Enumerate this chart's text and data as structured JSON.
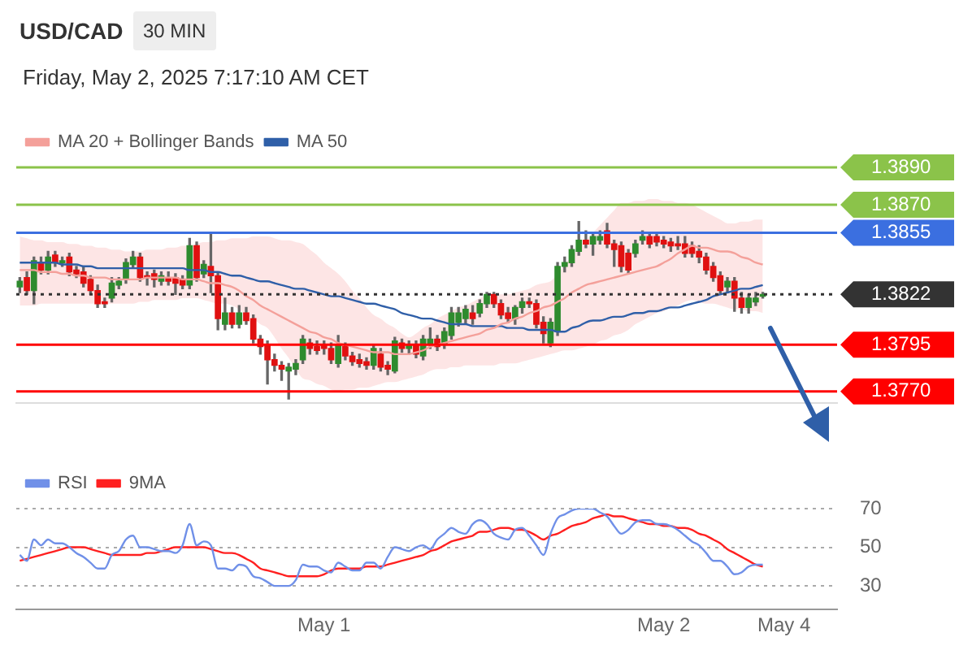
{
  "chart_data": [
    {
      "type": "candlestick",
      "title": "USD/CAD",
      "subtitle": "30 MIN",
      "annotations": [
        "Friday, May 2, 2025 7:17:10 AM CET"
      ],
      "categories": [
        null,
        null,
        null,
        null,
        null,
        null,
        null,
        null,
        null,
        null,
        null,
        null,
        null,
        null,
        null,
        null,
        null,
        null,
        null,
        null,
        null,
        null,
        null,
        null,
        null,
        null,
        null,
        null,
        null,
        null,
        null,
        null,
        null,
        null,
        null,
        null,
        null,
        null,
        null,
        null,
        null,
        null,
        null,
        null,
        null,
        null,
        null,
        null,
        null,
        null,
        null,
        null,
        null,
        null,
        null,
        null,
        null,
        null,
        null,
        null,
        null,
        null,
        null,
        null,
        null,
        null,
        null,
        null,
        null,
        null,
        null,
        null,
        null,
        null,
        null,
        null,
        null,
        null,
        null,
        null,
        null,
        null,
        null,
        null,
        null,
        null,
        null,
        null,
        null,
        null,
        null,
        null,
        null,
        null,
        null,
        null,
        null,
        null,
        null,
        null,
        null,
        null,
        null,
        null,
        null,
        null,
        null,
        null,
        null,
        null,
        null,
        null,
        null,
        null,
        null,
        null
      ],
      "ohlc": [
        [
          1.3826,
          1.3831,
          1.3823,
          1.3829
        ],
        [
          1.3831,
          1.3834,
          1.3822,
          1.3824
        ],
        [
          1.3824,
          1.3842,
          1.3817,
          1.384
        ],
        [
          1.3839,
          1.3842,
          1.3833,
          1.3835
        ],
        [
          1.3835,
          1.3845,
          1.3833,
          1.3842
        ],
        [
          1.3843,
          1.3845,
          1.3837,
          1.3839
        ],
        [
          1.3839,
          1.3842,
          1.3837,
          1.384
        ],
        [
          1.3842,
          1.3844,
          1.3832,
          1.3834
        ],
        [
          1.3835,
          1.3837,
          1.3831,
          1.3833
        ],
        [
          1.3834,
          1.3837,
          1.3826,
          1.3828
        ],
        [
          1.383,
          1.3832,
          1.3822,
          1.3824
        ],
        [
          1.3824,
          1.3827,
          1.3815,
          1.3817
        ],
        [
          1.3818,
          1.382,
          1.3815,
          1.3817
        ],
        [
          1.382,
          1.3831,
          1.3818,
          1.3828
        ],
        [
          1.3827,
          1.3831,
          1.3825,
          1.3829
        ],
        [
          1.383,
          1.3841,
          1.3828,
          1.3839
        ],
        [
          1.3838,
          1.3845,
          1.3836,
          1.3842
        ],
        [
          1.3842,
          1.3844,
          1.3829,
          1.3831
        ],
        [
          1.3832,
          1.3834,
          1.3827,
          1.3831
        ],
        [
          1.3833,
          1.3835,
          1.3826,
          1.383
        ],
        [
          1.3829,
          1.3834,
          1.3827,
          1.3832
        ],
        [
          1.3831,
          1.3834,
          1.3827,
          1.3829
        ],
        [
          1.3831,
          1.3833,
          1.3822,
          1.3828
        ],
        [
          1.383,
          1.3832,
          1.3825,
          1.3827
        ],
        [
          1.3827,
          1.3852,
          1.3825,
          1.3848
        ],
        [
          1.3848,
          1.385,
          1.3829,
          1.3831
        ],
        [
          1.3833,
          1.384,
          1.3831,
          1.3838
        ],
        [
          1.3837,
          1.3854,
          1.3823,
          1.3832
        ],
        [
          1.3832,
          1.3834,
          1.3803,
          1.3809
        ],
        [
          1.3806,
          1.382,
          1.3803,
          1.3812
        ],
        [
          1.3812,
          1.3815,
          1.3804,
          1.3806
        ],
        [
          1.3806,
          1.3816,
          1.3804,
          1.3812
        ],
        [
          1.3812,
          1.3815,
          1.3806,
          1.3808
        ],
        [
          1.3809,
          1.3811,
          1.3796,
          1.3798
        ],
        [
          1.3798,
          1.38,
          1.379,
          1.3794
        ],
        [
          1.3795,
          1.3797,
          1.3774,
          1.3787
        ],
        [
          1.3787,
          1.379,
          1.3781,
          1.3784
        ],
        [
          1.3784,
          1.3786,
          1.3776,
          1.3782
        ],
        [
          1.3781,
          1.3785,
          1.3766,
          1.3783
        ],
        [
          1.3782,
          1.3787,
          1.3779,
          1.3785
        ],
        [
          1.3787,
          1.38,
          1.3785,
          1.3798
        ],
        [
          1.3796,
          1.3798,
          1.379,
          1.3793
        ],
        [
          1.3794,
          1.3797,
          1.379,
          1.3792
        ],
        [
          1.3795,
          1.3797,
          1.379,
          1.3793
        ],
        [
          1.3793,
          1.3796,
          1.3785,
          1.3787
        ],
        [
          1.3785,
          1.38,
          1.3783,
          1.3795
        ],
        [
          1.3794,
          1.3796,
          1.3787,
          1.3789
        ],
        [
          1.3789,
          1.3791,
          1.3784,
          1.3786
        ],
        [
          1.3787,
          1.379,
          1.3783,
          1.3785
        ],
        [
          1.3786,
          1.3788,
          1.3782,
          1.3784
        ],
        [
          1.3784,
          1.3795,
          1.3782,
          1.3793
        ],
        [
          1.379,
          1.3793,
          1.3781,
          1.3783
        ],
        [
          1.3784,
          1.3786,
          1.3779,
          1.3782
        ],
        [
          1.3781,
          1.3799,
          1.378,
          1.3797
        ],
        [
          1.3796,
          1.3798,
          1.3791,
          1.3793
        ],
        [
          1.3793,
          1.3797,
          1.379,
          1.3795
        ],
        [
          1.3795,
          1.3797,
          1.3788,
          1.379
        ],
        [
          1.3789,
          1.38,
          1.3787,
          1.3798
        ],
        [
          1.3795,
          1.3804,
          1.3793,
          1.3798
        ],
        [
          1.3798,
          1.38,
          1.3792,
          1.3794
        ],
        [
          1.3795,
          1.3804,
          1.3793,
          1.3802
        ],
        [
          1.38,
          1.3815,
          1.3798,
          1.3812
        ],
        [
          1.3807,
          1.3815,
          1.3805,
          1.3812
        ],
        [
          1.3809,
          1.3816,
          1.3806,
          1.3814
        ],
        [
          1.3812,
          1.3816,
          1.3806,
          1.3809
        ],
        [
          1.3812,
          1.3819,
          1.381,
          1.3817
        ],
        [
          1.3817,
          1.3823,
          1.3815,
          1.3822
        ],
        [
          1.3822,
          1.3823,
          1.3815,
          1.3817
        ],
        [
          1.3817,
          1.3819,
          1.3809,
          1.3811
        ],
        [
          1.3812,
          1.3815,
          1.3807,
          1.3809
        ],
        [
          1.3809,
          1.3816,
          1.3806,
          1.3815
        ],
        [
          1.3815,
          1.382,
          1.3812,
          1.3818
        ],
        [
          1.3818,
          1.382,
          1.3815,
          1.3817
        ],
        [
          1.3817,
          1.3819,
          1.3804,
          1.3806
        ],
        [
          1.3807,
          1.381,
          1.3796,
          1.3801
        ],
        [
          1.3796,
          1.3809,
          1.3794,
          1.3807
        ],
        [
          1.3802,
          1.3839,
          1.38,
          1.3837
        ],
        [
          1.3837,
          1.3842,
          1.3834,
          1.3839
        ],
        [
          1.3839,
          1.3848,
          1.3837,
          1.3846
        ],
        [
          1.3845,
          1.3861,
          1.3843,
          1.3851
        ],
        [
          1.3851,
          1.3856,
          1.3847,
          1.3849
        ],
        [
          1.3849,
          1.3855,
          1.3843,
          1.3853
        ],
        [
          1.3851,
          1.3856,
          1.3849,
          1.3853
        ],
        [
          1.3856,
          1.386,
          1.3847,
          1.3849
        ],
        [
          1.3849,
          1.3851,
          1.3837,
          1.3846
        ],
        [
          1.3848,
          1.385,
          1.3834,
          1.3837
        ],
        [
          1.3844,
          1.3846,
          1.3833,
          1.3835
        ],
        [
          1.3844,
          1.3851,
          1.3842,
          1.3849
        ],
        [
          1.3851,
          1.3856,
          1.3849,
          1.3853
        ],
        [
          1.3853,
          1.3855,
          1.3847,
          1.3849
        ],
        [
          1.3853,
          1.3855,
          1.3848,
          1.385
        ],
        [
          1.3851,
          1.3853,
          1.3847,
          1.3849
        ],
        [
          1.385,
          1.3852,
          1.3845,
          1.3848
        ],
        [
          1.3849,
          1.3853,
          1.3846,
          1.3848
        ],
        [
          1.3849,
          1.3853,
          1.3842,
          1.3844
        ],
        [
          1.3848,
          1.385,
          1.3842,
          1.3844
        ],
        [
          1.3845,
          1.3848,
          1.3839,
          1.3842
        ],
        [
          1.3842,
          1.3844,
          1.3833,
          1.3835
        ],
        [
          1.3837,
          1.3839,
          1.3829,
          1.3831
        ],
        [
          1.3832,
          1.3834,
          1.3822,
          1.3824
        ],
        [
          1.3826,
          1.3831,
          1.3823,
          1.3829
        ],
        [
          1.3829,
          1.3831,
          1.3813,
          1.382
        ],
        [
          1.382,
          1.3823,
          1.3812,
          1.3815
        ],
        [
          1.3815,
          1.3822,
          1.3812,
          1.382
        ],
        [
          1.3818,
          1.3823,
          1.3816,
          1.382
        ],
        [
          1.3821,
          1.3823,
          1.382,
          1.3822
        ],
        null,
        null,
        null,
        null,
        null,
        null,
        null,
        null,
        null,
        null
      ],
      "series": [
        {
          "name": "MA 20 + Bollinger Bands",
          "type": "line",
          "color": "#f4a09a",
          "values": [
            1.3835,
            1.3835,
            1.3835,
            1.3834,
            1.3834,
            1.3834,
            1.3833,
            1.3833,
            1.3832,
            1.3832,
            1.3831,
            1.3831,
            1.3831,
            1.383,
            1.383,
            1.383,
            1.383,
            1.383,
            1.3831,
            1.3831,
            1.3831,
            1.3831,
            1.3831,
            1.383,
            1.383,
            1.383,
            1.3829,
            1.3828,
            1.3828,
            1.3827,
            1.3826,
            1.3824,
            1.3821,
            1.3819,
            1.3816,
            1.3814,
            1.3812,
            1.381,
            1.3808,
            1.3806,
            1.3804,
            1.3802,
            1.3801,
            1.3799,
            1.3798,
            1.3796,
            1.3795,
            1.3794,
            1.3793,
            1.3792,
            1.3791,
            1.3791,
            1.3791,
            1.379,
            1.379,
            1.379,
            1.3791,
            1.3792,
            1.3794,
            1.3795,
            1.3796,
            1.3797,
            1.3798,
            1.3799,
            1.38,
            1.3801,
            1.3803,
            1.3804,
            1.3806,
            1.3807,
            1.3809,
            1.381,
            1.3812,
            1.3813,
            1.3815,
            1.3816,
            1.3818,
            1.382,
            1.3823,
            1.3825,
            1.3827,
            1.3828,
            1.3829,
            1.383,
            1.3831,
            1.3832,
            1.3833,
            1.3834,
            1.3835,
            1.3836,
            1.3837,
            1.3839,
            1.3841,
            1.3844,
            1.3846,
            1.3848,
            1.3847,
            1.3847,
            1.3846,
            1.3845,
            1.3845,
            1.3844,
            1.3842,
            1.3841,
            1.3839,
            1.3838,
            null,
            null,
            null,
            null,
            null,
            null,
            null,
            null,
            null,
            null
          ],
          "upper": [
            1.3853,
            1.3852,
            1.3851,
            1.3851,
            1.385,
            1.385,
            1.385,
            1.3849,
            1.3849,
            1.3848,
            1.3848,
            1.3847,
            1.3847,
            1.3846,
            1.3846,
            1.3845,
            1.3845,
            1.3845,
            1.3846,
            1.3846,
            1.3846,
            1.3847,
            1.3847,
            1.3848,
            1.3848,
            1.3849,
            1.385,
            1.385,
            1.3851,
            1.3851,
            1.3852,
            1.3852,
            1.3852,
            1.3853,
            1.3853,
            1.3853,
            1.3852,
            1.3851,
            1.3851,
            1.385,
            1.3849,
            1.3846,
            1.3843,
            1.3839,
            1.3836,
            1.3833,
            1.3829,
            1.3824,
            1.382,
            1.3815,
            1.3811,
            1.3809,
            1.3806,
            1.3804,
            1.3801,
            1.3799,
            1.3801,
            1.3804,
            1.3806,
            1.3809,
            1.3811,
            1.3813,
            1.3815,
            1.3816,
            1.3818,
            1.382,
            1.3821,
            1.3821,
            1.3822,
            1.3822,
            1.3823,
            1.3824,
            1.3825,
            1.3827,
            1.3828,
            1.3829,
            1.3833,
            1.3838,
            1.3842,
            1.3847,
            1.3851,
            1.3855,
            1.3859,
            1.3863,
            1.3867,
            1.3871,
            1.3871,
            1.3872,
            1.3872,
            1.3873,
            1.3873,
            1.3872,
            1.3872,
            1.3871,
            1.3871,
            1.387,
            1.3868,
            1.3866,
            1.3864,
            1.3862,
            1.386,
            1.386,
            1.3861,
            1.3861,
            1.3862,
            1.3862,
            null,
            null,
            null,
            null,
            null,
            null,
            null,
            null,
            null,
            null
          ],
          "lower": [
            1.3816,
            1.3816,
            1.3816,
            1.3817,
            1.3817,
            1.3817,
            1.3817,
            1.3817,
            1.3817,
            1.3817,
            1.3817,
            1.3817,
            1.3817,
            1.3817,
            1.3817,
            1.3817,
            1.3817,
            1.3818,
            1.3818,
            1.3819,
            1.3819,
            1.3819,
            1.3819,
            1.382,
            1.382,
            1.382,
            1.3819,
            1.3818,
            1.3817,
            1.3817,
            1.3816,
            1.3814,
            1.3811,
            1.3809,
            1.3806,
            1.3804,
            1.3799,
            1.3793,
            1.3788,
            1.3782,
            1.3777,
            1.3776,
            1.3774,
            1.3773,
            1.3771,
            1.377,
            1.3771,
            1.3771,
            1.3772,
            1.3772,
            1.3773,
            1.3774,
            1.3775,
            1.3775,
            1.3776,
            1.3777,
            1.3778,
            1.3779,
            1.3781,
            1.3782,
            1.3782,
            1.3783,
            1.3783,
            1.3784,
            1.3784,
            1.3784,
            1.3784,
            1.3784,
            1.3785,
            1.3785,
            1.3785,
            1.3786,
            1.3787,
            1.3788,
            1.3789,
            1.379,
            1.3791,
            1.3792,
            1.3792,
            1.3793,
            1.3794,
            1.3795,
            1.3797,
            1.3798,
            1.38,
            1.3801,
            1.3803,
            1.3806,
            1.3808,
            1.381,
            1.3812,
            1.3813,
            1.3815,
            1.3816,
            1.3818,
            1.3819,
            1.3818,
            1.3817,
            1.3817,
            1.3816,
            1.3815,
            1.3814,
            1.3814,
            1.3813,
            1.3813,
            1.3812,
            null,
            null,
            null,
            null,
            null,
            null,
            null,
            null,
            null,
            null
          ]
        },
        {
          "name": "MA 50",
          "type": "line",
          "color": "#2f5fa8",
          "values": [
            1.3839,
            1.3839,
            1.3839,
            1.3839,
            1.3839,
            1.3839,
            1.3838,
            1.3838,
            1.3838,
            1.3837,
            1.3837,
            1.3836,
            1.3836,
            1.3836,
            1.3836,
            1.3836,
            1.3836,
            1.3836,
            1.3836,
            1.3836,
            1.3836,
            1.3836,
            1.3836,
            1.3836,
            1.3835,
            1.3835,
            1.3835,
            1.3834,
            1.3834,
            1.3833,
            1.3832,
            1.3832,
            1.3831,
            1.383,
            1.3829,
            1.3829,
            1.3828,
            1.3827,
            1.3826,
            1.3825,
            1.3825,
            1.3824,
            1.3823,
            1.3822,
            1.3821,
            1.3821,
            1.382,
            1.3819,
            1.3818,
            1.3817,
            1.3817,
            1.3816,
            1.3815,
            1.3814,
            1.3812,
            1.3811,
            1.381,
            1.3809,
            1.3809,
            1.3808,
            1.3807,
            1.3806,
            1.3806,
            1.3806,
            1.3805,
            1.3805,
            1.3805,
            1.3805,
            1.3805,
            1.3804,
            1.3804,
            1.3804,
            1.3803,
            1.3803,
            1.3803,
            1.3803,
            1.3802,
            1.3802,
            1.3804,
            1.3805,
            1.3807,
            1.3808,
            1.3808,
            1.3809,
            1.381,
            1.381,
            1.3811,
            1.3812,
            1.3812,
            1.3813,
            1.3813,
            1.3814,
            1.3815,
            1.3815,
            1.3816,
            1.3817,
            1.3818,
            1.3819,
            1.3821,
            1.3822,
            1.3823,
            1.3824,
            1.3825,
            1.3825,
            1.3826,
            1.3827,
            null,
            null,
            null,
            null,
            null,
            null,
            null,
            null,
            null,
            null
          ]
        }
      ],
      "ylim": [
        1.3764,
        1.389
      ],
      "yticks": [
        {
          "value": 1.377,
          "label": "1.3770"
        },
        1.3795,
        1.3822,
        1.3855,
        {
          "value": 1.387,
          "label": "1.3870"
        },
        {
          "value": 1.389,
          "label": "1.3890"
        }
      ],
      "ref_lines": [
        {
          "axis": "y",
          "value": 1.389,
          "color": "#8bc34a"
        },
        {
          "axis": "y",
          "value": 1.387,
          "color": "#8bc34a"
        },
        {
          "axis": "y",
          "value": 1.3855,
          "color": "#3b6fe0"
        },
        {
          "axis": "y",
          "value": 1.3822,
          "color": "#333333",
          "line_style": "dotted"
        },
        {
          "axis": "y",
          "value": 1.3795,
          "color": "#ff0000"
        },
        {
          "axis": "y",
          "value": 1.377,
          "color": "#ff0000"
        }
      ],
      "legend": "top left",
      "tick_labels": "y"
    },
    {
      "type": "line",
      "categories": [
        null,
        null,
        null,
        null,
        null,
        null,
        null,
        null,
        null,
        null,
        null,
        null,
        null,
        null,
        null,
        null,
        null,
        null,
        null,
        null,
        null,
        null,
        null,
        null,
        null,
        null,
        null,
        null,
        null,
        null,
        null,
        null,
        null,
        null,
        null,
        null,
        null,
        null,
        null,
        null,
        null,
        null,
        null,
        "May 1",
        null,
        null,
        null,
        null,
        null,
        null,
        null,
        null,
        null,
        null,
        null,
        null,
        null,
        null,
        null,
        null,
        null,
        null,
        null,
        null,
        null,
        null,
        null,
        null,
        null,
        null,
        null,
        null,
        null,
        null,
        null,
        null,
        null,
        null,
        null,
        null,
        null,
        null,
        null,
        null,
        null,
        null,
        null,
        null,
        null,
        null,
        null,
        "May 2",
        null,
        null,
        null,
        null,
        null,
        null,
        null,
        null,
        null,
        null,
        null,
        null,
        null,
        null,
        null,
        null,
        "May 4",
        null,
        null,
        null,
        null,
        null,
        null,
        null
      ],
      "series": [
        {
          "name": "RSI",
          "color": "#7090e8",
          "values": [
            46,
            43,
            54,
            51,
            54,
            52,
            52,
            50,
            47,
            45,
            42,
            39,
            39,
            46,
            48,
            54,
            56,
            50,
            50,
            49,
            48,
            48,
            47,
            51,
            62,
            51,
            53,
            51,
            39,
            39,
            38,
            41,
            40,
            35,
            34,
            32,
            30,
            30,
            30,
            33,
            41,
            40,
            40,
            38,
            37,
            42,
            40,
            38,
            38,
            42,
            42,
            39,
            45,
            50,
            49,
            48,
            50,
            51,
            49,
            54,
            57,
            60,
            58,
            57,
            62,
            64,
            62,
            57,
            55,
            54,
            59,
            60,
            56,
            51,
            46,
            57,
            65,
            67,
            69,
            70,
            70,
            70,
            68,
            66,
            61,
            57,
            59,
            63,
            64,
            64,
            62,
            62,
            61,
            59,
            56,
            53,
            51,
            47,
            43,
            43,
            40,
            36,
            37,
            40,
            41,
            41,
            null,
            null,
            null,
            null,
            null,
            null,
            null,
            null,
            null,
            null
          ]
        },
        {
          "name": "9MA",
          "color": "#ff2020",
          "values": [
            43,
            44,
            45,
            46,
            47,
            48,
            49,
            50,
            50,
            50,
            49,
            48,
            47,
            46,
            46,
            46,
            46,
            46,
            47,
            47,
            48,
            49,
            50,
            50,
            50,
            50,
            50,
            49,
            48,
            47,
            47,
            46,
            44,
            42,
            39,
            38,
            37,
            36,
            35,
            35,
            35,
            35,
            35,
            36,
            38,
            39,
            39,
            39,
            39,
            40,
            40,
            40,
            41,
            42,
            43,
            44,
            45,
            46,
            48,
            49,
            51,
            53,
            54,
            55,
            56,
            58,
            58,
            59,
            60,
            60,
            59,
            59,
            58,
            56,
            54,
            56,
            57,
            59,
            61,
            62,
            63,
            65,
            66,
            67,
            66,
            66,
            65,
            64,
            63,
            62,
            62,
            61,
            61,
            60,
            60,
            59,
            57,
            56,
            54,
            52,
            49,
            47,
            45,
            43,
            41,
            40,
            null,
            null,
            null,
            null,
            null,
            null,
            null,
            null,
            null,
            null
          ]
        }
      ],
      "ylim": [
        18,
        70
      ],
      "yticks": [
        30,
        50,
        70
      ],
      "grid": "y",
      "legend": "top left"
    }
  ]
}
